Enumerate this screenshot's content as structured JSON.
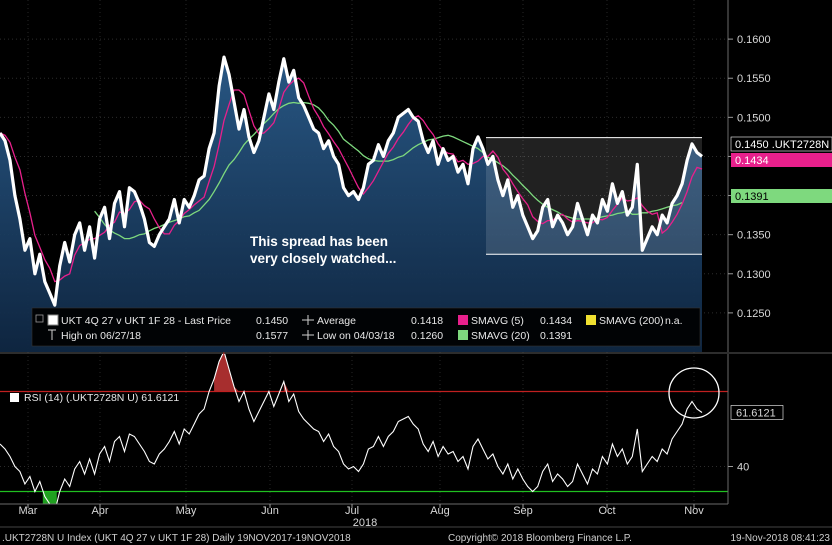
{
  "chart_data": [
    {
      "type": "line",
      "ylim": [
        0.12,
        0.165
      ],
      "yticks": [
        "0.1250",
        "0.1300",
        "0.1350",
        "0.1400",
        "0.1450",
        "0.1500",
        "0.1550",
        "0.1600"
      ],
      "annotation": "This spread has been very closely watched...",
      "annotation_lines": [
        "This spread has been",
        "very closely watched..."
      ],
      "range_box": {
        "high": 0.1474,
        "low": 0.1325
      },
      "series": [
        {
          "name": "UKT 4Q 27 v UKT 1F 28 - Last Price",
          "color": "#ffffff",
          "values": [
            0.148,
            0.147,
            0.1445,
            0.14,
            0.137,
            0.133,
            0.1345,
            0.13,
            0.1325,
            0.129,
            0.1275,
            0.126,
            0.131,
            0.134,
            0.1315,
            0.135,
            0.1365,
            0.133,
            0.136,
            0.132,
            0.137,
            0.1385,
            0.1345,
            0.139,
            0.1405,
            0.136,
            0.141,
            0.1405,
            0.139,
            0.137,
            0.134,
            0.1335,
            0.135,
            0.136,
            0.137,
            0.1395,
            0.1365,
            0.1395,
            0.1385,
            0.14,
            0.142,
            0.1425,
            0.146,
            0.148,
            0.154,
            0.1577,
            0.1555,
            0.152,
            0.1485,
            0.151,
            0.1475,
            0.1455,
            0.147,
            0.15,
            0.153,
            0.151,
            0.1545,
            0.1575,
            0.1545,
            0.156,
            0.1525,
            0.1515,
            0.15,
            0.1485,
            0.148,
            0.146,
            0.147,
            0.145,
            0.144,
            0.141,
            0.14,
            0.1405,
            0.1395,
            0.141,
            0.144,
            0.1445,
            0.1465,
            0.145,
            0.147,
            0.148,
            0.15,
            0.1505,
            0.151,
            0.15,
            0.1495,
            0.147,
            0.1455,
            0.147,
            0.144,
            0.146,
            0.1445,
            0.145,
            0.143,
            0.144,
            0.1415,
            0.146,
            0.1475,
            0.146,
            0.144,
            0.145,
            0.142,
            0.14,
            0.142,
            0.1385,
            0.14,
            0.1375,
            0.136,
            0.1345,
            0.1355,
            0.1385,
            0.1395,
            0.136,
            0.1375,
            0.1365,
            0.135,
            0.136,
            0.139,
            0.137,
            0.135,
            0.1375,
            0.1365,
            0.1395,
            0.138,
            0.1415,
            0.139,
            0.1405,
            0.1375,
            0.1385,
            0.144,
            0.133,
            0.1345,
            0.136,
            0.135,
            0.1375,
            0.1365,
            0.139,
            0.14,
            0.1415,
            0.1445,
            0.1466,
            0.1455,
            0.145
          ]
        },
        {
          "name": "SMAVG (5)",
          "color": "#e8208c",
          "values": [
            0.148,
            0.1477,
            0.1468,
            0.1449,
            0.1433,
            0.1403,
            0.1378,
            0.1349,
            0.1334,
            0.1318,
            0.1307,
            0.129,
            0.1292,
            0.1297,
            0.13,
            0.1324,
            0.1336,
            0.134,
            0.1344,
            0.1345,
            0.1349,
            0.1353,
            0.1362,
            0.1366,
            0.1379,
            0.1377,
            0.1382,
            0.1392,
            0.1394,
            0.1387,
            0.1383,
            0.137,
            0.1359,
            0.1351,
            0.1351,
            0.1362,
            0.1368,
            0.1377,
            0.1382,
            0.1388,
            0.1393,
            0.1398,
            0.1418,
            0.1437,
            0.1465,
            0.1496,
            0.1516,
            0.1535,
            0.1535,
            0.1529,
            0.1509,
            0.1489,
            0.1479,
            0.148,
            0.1486,
            0.1493,
            0.1511,
            0.1532,
            0.1541,
            0.1547,
            0.155,
            0.1544,
            0.1527,
            0.1511,
            0.1501,
            0.1488,
            0.1479,
            0.1469,
            0.146,
            0.1448,
            0.1436,
            0.1423,
            0.141,
            0.1402,
            0.141,
            0.1419,
            0.1431,
            0.1443,
            0.1454,
            0.1462,
            0.1473,
            0.1481,
            0.1491,
            0.1499,
            0.1502,
            0.1496,
            0.1486,
            0.1478,
            0.1466,
            0.1458,
            0.1454,
            0.1453,
            0.1443,
            0.1445,
            0.144,
            0.1441,
            0.1444,
            0.145,
            0.145,
            0.1457,
            0.1449,
            0.1434,
            0.1426,
            0.1415,
            0.1405,
            0.1396,
            0.1388,
            0.1373,
            0.1367,
            0.1364,
            0.1368,
            0.1368,
            0.1374,
            0.1376,
            0.137,
            0.1366,
            0.1368,
            0.1367,
            0.1365,
            0.1365,
            0.137,
            0.1369,
            0.1372,
            0.1381,
            0.1389,
            0.1397,
            0.1393,
            0.1394,
            0.1397,
            0.1387,
            0.138,
            0.1376,
            0.1378,
            0.1352,
            0.1357,
            0.1366,
            0.1376,
            0.1389,
            0.1405,
            0.1424,
            0.1436,
            0.1434
          ]
        },
        {
          "name": "SMAVG (20)",
          "color": "#7ed97e",
          "values": [
            null,
            null,
            null,
            null,
            null,
            null,
            null,
            null,
            null,
            null,
            null,
            null,
            null,
            null,
            null,
            null,
            null,
            null,
            null,
            0.138,
            0.1372,
            0.1363,
            0.1356,
            0.1352,
            0.1349,
            0.1345,
            0.1345,
            0.1347,
            0.135,
            0.1351,
            0.1355,
            0.1358,
            0.136,
            0.1363,
            0.1366,
            0.1368,
            0.137,
            0.1373,
            0.1374,
            0.1378,
            0.1381,
            0.1388,
            0.1395,
            0.1405,
            0.1416,
            0.1428,
            0.1439,
            0.1446,
            0.1455,
            0.1465,
            0.1472,
            0.1478,
            0.1485,
            0.1492,
            0.1498,
            0.1505,
            0.1511,
            0.1515,
            0.1518,
            0.1519,
            0.1518,
            0.1519,
            0.1518,
            0.1516,
            0.1512,
            0.1505,
            0.1496,
            0.149,
            0.1482,
            0.1472,
            0.1467,
            0.1462,
            0.1457,
            0.1451,
            0.1447,
            0.1445,
            0.1444,
            0.1444,
            0.1444,
            0.1446,
            0.1449,
            0.1451,
            0.1456,
            0.1461,
            0.1465,
            0.1468,
            0.1471,
            0.1472,
            0.1474,
            0.1476,
            0.1477,
            0.1475,
            0.1472,
            0.1469,
            0.1466,
            0.1463,
            0.146,
            0.1455,
            0.1449,
            0.1446,
            0.1442,
            0.1438,
            0.1433,
            0.1426,
            0.142,
            0.1413,
            0.1407,
            0.14,
            0.1394,
            0.1389,
            0.1385,
            0.1382,
            0.1379,
            0.1375,
            0.1373,
            0.1371,
            0.137,
            0.137,
            0.137,
            0.137,
            0.1371,
            0.1373,
            0.1374,
            0.1375,
            0.1377,
            0.1378,
            0.138,
            0.1376,
            0.1376,
            0.1378,
            0.1378,
            0.138,
            0.1381,
            0.1383,
            0.1385,
            0.1387,
            0.1388,
            0.1391
          ]
        }
      ],
      "legend": [
        {
          "label": "UKT 4Q 27 v UKT 1F 28 - Last Price",
          "value": "0.1450",
          "swatch": "#ffffff"
        },
        {
          "label": "High on 06/27/18",
          "value": "0.1577",
          "swatch": null
        },
        {
          "label": "Average",
          "value": "0.1418",
          "swatch": null
        },
        {
          "label": "Low on 04/03/18",
          "value": "0.1260",
          "swatch": null
        },
        {
          "label": "SMAVG (5)",
          "value": "0.1434",
          "swatch": "#e8208c"
        },
        {
          "label": "SMAVG (20)",
          "value": "0.1391",
          "swatch": "#7ed97e"
        },
        {
          "label": "SMAVG (200)",
          "value": "n.a.",
          "swatch": "#f0e030"
        }
      ],
      "last_value_labels": [
        {
          "text": "0.1450 .UKT2728N",
          "value": 0.145,
          "bg": "#000000",
          "fg": "#ffffff"
        },
        {
          "text": "0.1434",
          "value": 0.1434,
          "bg": "#e8208c",
          "fg": "#ffffff"
        },
        {
          "text": "0.1391",
          "value": 0.1391,
          "bg": "#7ed97e",
          "fg": "#000000"
        }
      ]
    },
    {
      "type": "line",
      "name": "RSI (14) (.UKT2728N U)",
      "legend_value": "61.6121",
      "legend_label": "RSI (14) (.UKT2728N U) 61.6121",
      "ylim": [
        25,
        85
      ],
      "overbought": 70,
      "oversold": 30,
      "yticks": [
        "40"
      ],
      "last_value_label": "61.6121",
      "color": "#ffffff",
      "values": [
        49,
        47,
        44,
        40,
        38,
        33,
        36,
        30,
        34,
        28,
        25,
        22,
        30,
        35,
        32,
        39,
        42,
        37,
        43,
        37,
        45,
        48,
        42,
        50,
        52,
        46,
        53,
        52,
        49,
        46,
        42,
        41,
        45,
        47,
        50,
        54,
        49,
        55,
        53,
        57,
        61,
        63,
        70,
        75,
        82,
        86,
        79,
        72,
        66,
        70,
        63,
        58,
        62,
        66,
        70,
        64,
        69,
        74,
        66,
        69,
        62,
        59,
        57,
        55,
        54,
        50,
        53,
        48,
        46,
        41,
        39,
        40,
        38,
        41,
        47,
        48,
        52,
        48,
        52,
        54,
        58,
        59,
        60,
        57,
        55,
        49,
        46,
        50,
        44,
        48,
        45,
        46,
        42,
        44,
        39,
        48,
        51,
        47,
        43,
        45,
        40,
        37,
        41,
        35,
        39,
        35,
        32,
        30,
        32,
        38,
        41,
        34,
        37,
        35,
        32,
        34,
        41,
        37,
        33,
        39,
        37,
        44,
        41,
        49,
        44,
        47,
        41,
        44,
        55,
        38,
        41,
        44,
        42,
        47,
        45,
        51,
        54,
        57,
        63,
        66,
        63,
        61.6
      ]
    }
  ],
  "x_axis": {
    "labels": [
      "Mar",
      "Apr",
      "May",
      "Jun",
      "Jul",
      "Aug",
      "Sep",
      "Oct",
      "Nov"
    ],
    "year": "2018"
  },
  "footer": {
    "left": ".UKT2728N U Index (UKT 4Q 27 v UKT 1F 28)  Daily 19NOV2017-19NOV2018",
    "center": "Copyright© 2018 Bloomberg Finance L.P.",
    "right": "19-Nov-2018 08:41:23"
  },
  "colors": {
    "background": "#000000",
    "area_fill": "#173a60",
    "overbought_line": "#c02020",
    "oversold_line": "#20c020",
    "overbought_fill": "#b03030",
    "oversold_fill": "#20a020"
  }
}
